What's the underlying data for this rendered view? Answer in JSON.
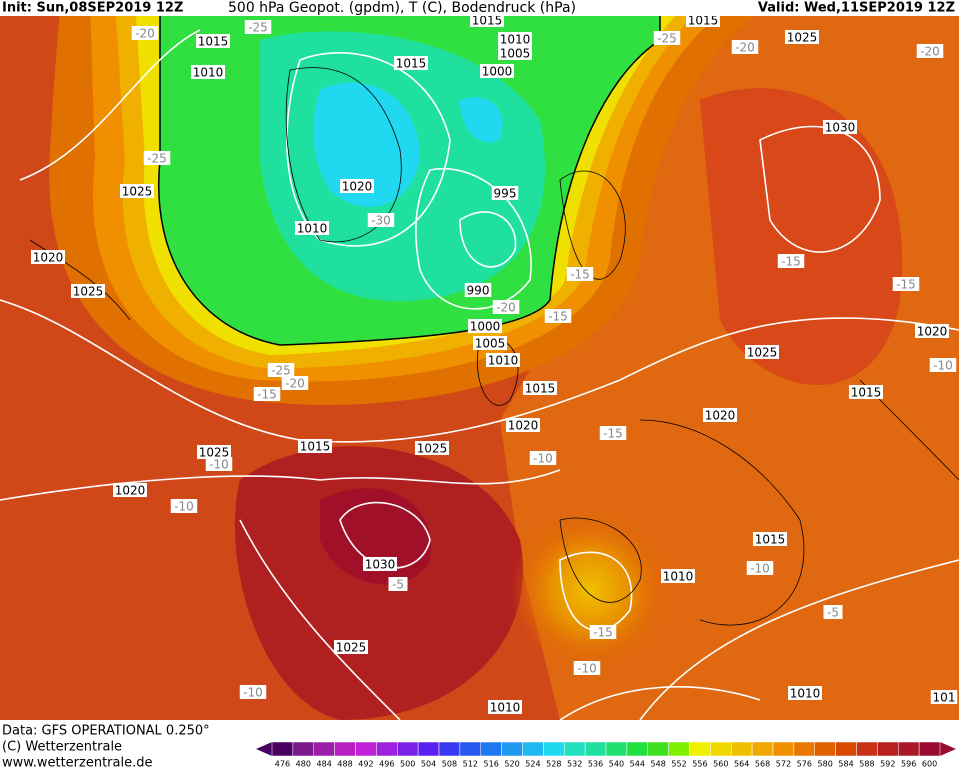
{
  "header": {
    "init": "Init: Sun,08SEP2019 12Z",
    "title": "500 hPa Geopot. (gpdm), T (C), Bodendruck (hPa)",
    "valid": "Valid: Wed,11SEP2019 12Z"
  },
  "footer": {
    "source": "Data: GFS OPERATIONAL 0.250°",
    "copyright": "(C) Wetterzentrale",
    "url": "www.wetterzentrale.de"
  },
  "colorbar": {
    "labels": [
      476,
      480,
      484,
      488,
      492,
      496,
      500,
      504,
      508,
      512,
      516,
      520,
      524,
      528,
      532,
      536,
      540,
      544,
      548,
      552,
      556,
      560,
      564,
      568,
      572,
      576,
      580,
      584,
      588,
      592,
      596,
      600
    ],
    "colors": [
      "#4a0060",
      "#7a1a8a",
      "#9b1fa8",
      "#b81fc0",
      "#c020d8",
      "#a020e0",
      "#7a20e8",
      "#5a20f0",
      "#3a3af0",
      "#2858f0",
      "#2078f0",
      "#2098f0",
      "#20b8f0",
      "#20d8f0",
      "#20e0c0",
      "#20e0a0",
      "#20e070",
      "#20e040",
      "#40e020",
      "#80f000",
      "#f0f000",
      "#f0d800",
      "#f0c000",
      "#f0a800",
      "#f09000",
      "#e87800",
      "#e06000",
      "#d84800",
      "#c83018",
      "#b82020",
      "#a81828",
      "#980c30"
    ]
  },
  "map": {
    "pressure_labels": [
      "1015",
      "1010",
      "1015",
      "1015",
      "1010",
      "1005",
      "1015",
      "1000",
      "1025",
      "1030",
      "1020",
      "995",
      "1025",
      "1010",
      "1020",
      "1025",
      "990",
      "1000",
      "1005",
      "1010",
      "1015",
      "1020",
      "1025",
      "1015",
      "1020",
      "1020",
      "1015",
      "1025",
      "1025",
      "1020",
      "1015",
      "1030",
      "1010",
      "1025",
      "1010",
      "1010",
      "101"
    ],
    "temperature_labels": [
      "-20",
      "-25",
      "-25",
      "-20",
      "-20",
      "-25",
      "-30",
      "-15",
      "-15",
      "-15",
      "-20",
      "-15",
      "-10",
      "-25",
      "-20",
      "-15",
      "-15",
      "-10",
      "-10",
      "-10",
      "-5",
      "-10",
      "-5",
      "-15",
      "-10",
      "-10"
    ]
  }
}
